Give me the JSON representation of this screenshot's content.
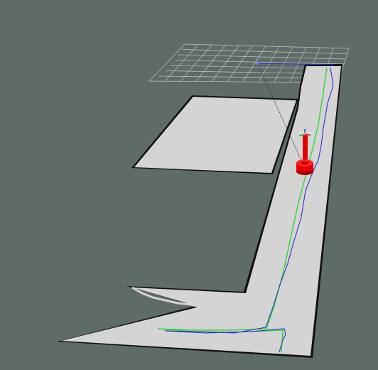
{
  "scene": {
    "type": "3d-map-visualization",
    "background_color": "#5f6b67",
    "map_free_color": "#d4d4d4",
    "map_edge_color": "#111111",
    "grid_color": "#b9c7c2",
    "green_path_color": "#20d820",
    "blue_path_color": "#3030d8",
    "robot_color": "#e00000",
    "axis_colors": {
      "x": "#e00000",
      "y": "#20c020",
      "z": "#2040e0"
    }
  }
}
